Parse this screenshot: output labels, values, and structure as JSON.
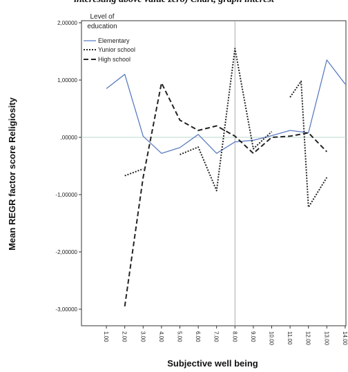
{
  "figure_top_text": "interesting above value zero) Chart, graph interest",
  "chart_data": {
    "type": "line",
    "xlabel": "Subjective well being",
    "ylabel": "Mean REGR factor score Religiosity",
    "x_categories": [
      "1.00",
      "2.00",
      "3.00",
      "4.00",
      "5.00",
      "6.00",
      "7.00",
      "8.00",
      "9.00",
      "10.00",
      "11.00",
      "12.00",
      "13.00",
      "14.00"
    ],
    "y_ticks": [
      2,
      1,
      0,
      -1,
      -2,
      -3
    ],
    "y_tick_labels": [
      "2,00000",
      "1,00000",
      ",00000",
      "-1,00000",
      "-2,00000",
      "-3,00000"
    ],
    "ylim": [
      -3.3,
      2.1
    ],
    "reference_lines": {
      "y": 0,
      "x": 8
    },
    "grid": false,
    "legend": {
      "title_lines": [
        "Level of",
        "education"
      ],
      "position": "top-left"
    },
    "series": [
      {
        "name": "Elementary",
        "style": "solid",
        "color": "#5b7bc0",
        "x": [
          1,
          2,
          3,
          4,
          5,
          6,
          7,
          8,
          9,
          10,
          11,
          12,
          13,
          14
        ],
        "values": [
          0.85,
          1.1,
          0.02,
          -0.28,
          -0.18,
          0.05,
          -0.28,
          -0.08,
          -0.05,
          0.03,
          0.12,
          0.08,
          1.35,
          0.93
        ]
      },
      {
        "name": "Yunior school",
        "style": "dotted",
        "color": "#222222",
        "segments": [
          {
            "x": [
              2,
              3
            ],
            "values": [
              -0.67,
              -0.55
            ]
          },
          {
            "x": [
              5,
              6,
              7,
              8,
              9,
              10
            ],
            "values": [
              -0.3,
              -0.17,
              -0.93,
              1.55,
              -0.2,
              0.1
            ]
          },
          {
            "x": [
              11,
              11.6,
              12,
              13
            ],
            "values": [
              0.7,
              0.98,
              -1.22,
              -0.7
            ]
          }
        ]
      },
      {
        "name": "High school",
        "style": "dashed",
        "color": "#222222",
        "x": [
          2,
          3,
          4,
          5,
          6,
          7,
          8,
          9,
          10,
          11,
          12,
          13
        ],
        "values": [
          -2.95,
          -0.7,
          0.95,
          0.3,
          0.12,
          0.2,
          0.02,
          -0.28,
          0.0,
          0.02,
          0.08,
          -0.25
        ]
      }
    ]
  }
}
